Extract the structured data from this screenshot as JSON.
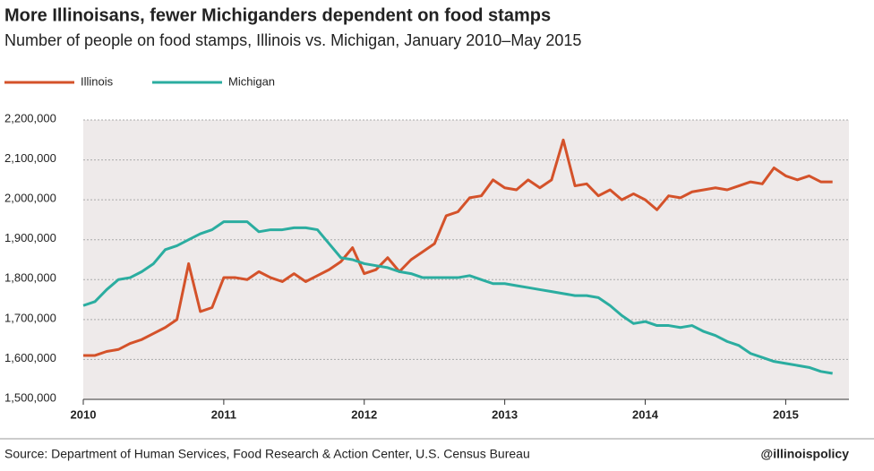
{
  "chart_data": {
    "type": "line",
    "title": "More Illinoisans, fewer Michiganders dependent on food stamps",
    "subtitle": "Number of people on food stamps, Illinois vs. Michigan, January 2010–May 2015",
    "source": "Source: Department of Human Services, Food Research & Action Center, U.S. Census Bureau",
    "credit": "@illinoispolicy",
    "x": [
      "2010-01",
      "2010-02",
      "2010-03",
      "2010-04",
      "2010-05",
      "2010-06",
      "2010-07",
      "2010-08",
      "2010-09",
      "2010-10",
      "2010-11",
      "2010-12",
      "2011-01",
      "2011-02",
      "2011-03",
      "2011-04",
      "2011-05",
      "2011-06",
      "2011-07",
      "2011-08",
      "2011-09",
      "2011-10",
      "2011-11",
      "2011-12",
      "2012-01",
      "2012-02",
      "2012-03",
      "2012-04",
      "2012-05",
      "2012-06",
      "2012-07",
      "2012-08",
      "2012-09",
      "2012-10",
      "2012-11",
      "2012-12",
      "2013-01",
      "2013-02",
      "2013-03",
      "2013-04",
      "2013-05",
      "2013-06",
      "2013-07",
      "2013-08",
      "2013-09",
      "2013-10",
      "2013-11",
      "2013-12",
      "2014-01",
      "2014-02",
      "2014-03",
      "2014-04",
      "2014-05",
      "2014-06",
      "2014-07",
      "2014-08",
      "2014-09",
      "2014-10",
      "2014-11",
      "2014-12",
      "2015-01",
      "2015-02",
      "2015-03",
      "2015-04",
      "2015-05"
    ],
    "series": [
      {
        "name": "Illinois",
        "color": "#d4522a",
        "values": [
          1610000,
          1610000,
          1620000,
          1625000,
          1640000,
          1650000,
          1665000,
          1680000,
          1700000,
          1840000,
          1720000,
          1730000,
          1805000,
          1805000,
          1800000,
          1820000,
          1805000,
          1795000,
          1815000,
          1795000,
          1810000,
          1825000,
          1845000,
          1880000,
          1815000,
          1825000,
          1855000,
          1820000,
          1850000,
          1870000,
          1890000,
          1960000,
          1970000,
          2005000,
          2010000,
          2050000,
          2030000,
          2025000,
          2050000,
          2030000,
          2050000,
          2150000,
          2035000,
          2040000,
          2010000,
          2025000,
          2000000,
          2015000,
          2000000,
          1975000,
          2010000,
          2005000,
          2020000,
          2025000,
          2030000,
          2025000,
          2035000,
          2045000,
          2040000,
          2080000,
          2060000,
          2050000,
          2060000,
          2045000,
          2045000
        ]
      },
      {
        "name": "Michigan",
        "color": "#2bada0",
        "values": [
          1735000,
          1745000,
          1775000,
          1800000,
          1805000,
          1820000,
          1840000,
          1875000,
          1885000,
          1900000,
          1915000,
          1925000,
          1945000,
          1945000,
          1945000,
          1920000,
          1925000,
          1925000,
          1930000,
          1930000,
          1925000,
          1890000,
          1855000,
          1850000,
          1840000,
          1835000,
          1830000,
          1820000,
          1815000,
          1805000,
          1805000,
          1805000,
          1805000,
          1810000,
          1800000,
          1790000,
          1790000,
          1785000,
          1780000,
          1775000,
          1770000,
          1765000,
          1760000,
          1760000,
          1755000,
          1735000,
          1710000,
          1690000,
          1695000,
          1685000,
          1685000,
          1680000,
          1685000,
          1670000,
          1660000,
          1645000,
          1635000,
          1615000,
          1605000,
          1595000,
          1590000,
          1585000,
          1580000,
          1570000,
          1565000
        ]
      }
    ],
    "xlim": [
      2010,
      2015.45
    ],
    "xticks": [
      2010,
      2011,
      2012,
      2013,
      2014,
      2015
    ],
    "ylim": [
      1500000,
      2200000
    ],
    "yticks": [
      {
        "value": 1500000,
        "label": "1,500,000"
      },
      {
        "value": 1600000,
        "label": "1,600,000"
      },
      {
        "value": 1700000,
        "label": "1,700,000"
      },
      {
        "value": 1800000,
        "label": "1,800,000"
      },
      {
        "value": 1900000,
        "label": "1,900,000"
      },
      {
        "value": 2000000,
        "label": "2,000,000"
      },
      {
        "value": 2100000,
        "label": "2,100,000"
      },
      {
        "value": 2200000,
        "label": "2,200,000"
      }
    ],
    "grid": true
  }
}
